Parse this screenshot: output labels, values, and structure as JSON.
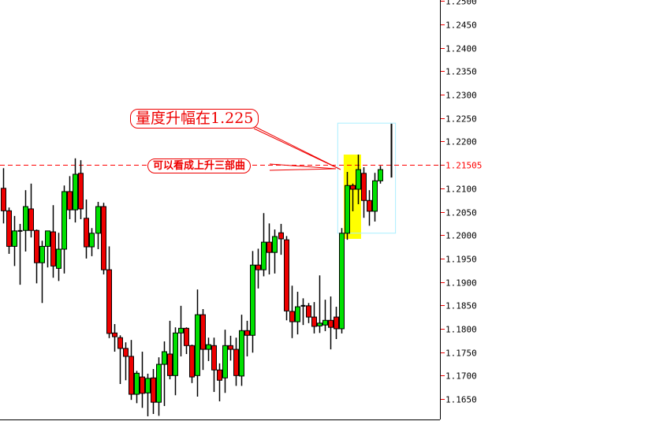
{
  "chart_data": {
    "type": "candlestick",
    "title": "",
    "xlabel": "",
    "ylabel": "",
    "ylim": [
      1.163,
      1.25
    ],
    "y_ticks": [
      "1.2500",
      "1.2450",
      "1.2400",
      "1.2350",
      "1.2300",
      "1.2250",
      "1.2200",
      "1.2100",
      "1.2050",
      "1.2000",
      "1.1950",
      "1.1900",
      "1.1850",
      "1.1800",
      "1.1750",
      "1.1700",
      "1.1650"
    ],
    "grid": false,
    "colors": {
      "up": "#00e000",
      "down": "#ee0000",
      "outline": "#000000",
      "level_line": "#ff0000",
      "highlight": "#ffff00",
      "box": "#aaeeff"
    },
    "candles_ohlc": [
      [
        1.21,
        1.2143,
        1.2025,
        1.2052
      ],
      [
        1.2052,
        1.2059,
        1.196,
        1.1976
      ],
      [
        1.1976,
        1.2041,
        1.1934,
        1.2009
      ],
      [
        1.2009,
        1.2024,
        1.1894,
        1.2009
      ],
      [
        1.201,
        1.2096,
        1.1965,
        1.2061
      ],
      [
        1.2056,
        1.211,
        1.1995,
        1.201
      ],
      [
        1.201,
        1.2012,
        1.1897,
        1.1941
      ],
      [
        1.1941,
        1.1988,
        1.1855,
        1.1976
      ],
      [
        1.1976,
        1.2009,
        1.1931,
        1.2009
      ],
      [
        1.2007,
        1.2064,
        1.1909,
        1.1934
      ],
      [
        1.1929,
        1.2005,
        1.1902,
        1.197
      ],
      [
        1.197,
        1.2106,
        1.1918,
        1.2093
      ],
      [
        1.2093,
        1.2126,
        1.2034,
        1.2054
      ],
      [
        1.2054,
        1.2164,
        1.2027,
        1.213
      ],
      [
        1.2132,
        1.216,
        1.2034,
        1.2056
      ],
      [
        1.2036,
        1.2076,
        1.195,
        1.1975
      ],
      [
        1.1975,
        1.2015,
        1.1955,
        1.2004
      ],
      [
        1.2004,
        1.2071,
        1.197,
        1.2061
      ],
      [
        1.2061,
        1.2069,
        1.1916,
        1.1926
      ],
      [
        1.1926,
        1.1976,
        1.178,
        1.179
      ],
      [
        1.1791,
        1.181,
        1.1751,
        1.1783
      ],
      [
        1.1781,
        1.1786,
        1.1682,
        1.1758
      ],
      [
        1.1758,
        1.1771,
        1.169,
        1.1741
      ],
      [
        1.1741,
        1.1776,
        1.1648,
        1.166
      ],
      [
        1.166,
        1.171,
        1.1641,
        1.1705
      ],
      [
        1.1697,
        1.1751,
        1.1631,
        1.1662
      ],
      [
        1.1663,
        1.1704,
        1.1613,
        1.1694
      ],
      [
        1.1695,
        1.1714,
        1.1618,
        1.1643
      ],
      [
        1.1643,
        1.1739,
        1.1614,
        1.1724
      ],
      [
        1.1724,
        1.1773,
        1.1635,
        1.1751
      ],
      [
        1.1746,
        1.1817,
        1.1692,
        1.17
      ],
      [
        1.17,
        1.1803,
        1.1658,
        1.1791
      ],
      [
        1.1791,
        1.1849,
        1.1741,
        1.1801
      ],
      [
        1.1801,
        1.1803,
        1.1746,
        1.1764
      ],
      [
        1.1764,
        1.1766,
        1.1684,
        1.1697
      ],
      [
        1.17,
        1.1884,
        1.1655,
        1.183
      ],
      [
        1.183,
        1.1842,
        1.1712,
        1.1756
      ],
      [
        1.1756,
        1.1781,
        1.1731,
        1.1766
      ],
      [
        1.1764,
        1.1781,
        1.1665,
        1.1712
      ],
      [
        1.1712,
        1.1726,
        1.1645,
        1.169
      ],
      [
        1.1695,
        1.1798,
        1.1663,
        1.1764
      ],
      [
        1.1764,
        1.1785,
        1.1732,
        1.1756
      ],
      [
        1.1756,
        1.1781,
        1.1678,
        1.17
      ],
      [
        1.1699,
        1.183,
        1.1678,
        1.1796
      ],
      [
        1.1796,
        1.1817,
        1.1741,
        1.1786
      ],
      [
        1.1786,
        1.1966,
        1.1749,
        1.1936
      ],
      [
        1.1936,
        1.1971,
        1.1886,
        1.1926
      ],
      [
        1.1926,
        1.2047,
        1.1912,
        1.1985
      ],
      [
        1.1985,
        1.2025,
        1.1916,
        1.1963
      ],
      [
        1.1963,
        1.2012,
        1.1918,
        1.1997
      ],
      [
        1.2005,
        1.2024,
        1.1958,
        1.1992
      ],
      [
        1.199,
        1.1998,
        1.1818,
        1.1838
      ],
      [
        1.1837,
        1.1892,
        1.178,
        1.1815
      ],
      [
        1.1815,
        1.1879,
        1.1788,
        1.1847
      ],
      [
        1.1849,
        1.1865,
        1.1808,
        1.1849
      ],
      [
        1.1849,
        1.1855,
        1.1812,
        1.1825
      ],
      [
        1.1825,
        1.1857,
        1.179,
        1.1805
      ],
      [
        1.1806,
        1.1914,
        1.1791,
        1.1812
      ],
      [
        1.1808,
        1.1862,
        1.1795,
        1.1818
      ],
      [
        1.1818,
        1.1869,
        1.1756,
        1.1803
      ],
      [
        1.1825,
        1.1847,
        1.1778,
        1.18
      ],
      [
        1.18,
        1.2015,
        1.179,
        1.2004
      ],
      [
        1.2004,
        1.2135,
        1.199,
        1.2106
      ],
      [
        1.2106,
        1.211,
        1.2051,
        1.2098
      ],
      [
        1.2098,
        1.2172,
        1.2066,
        1.214
      ],
      [
        1.2132,
        1.2145,
        1.2037,
        1.2074
      ],
      [
        1.2074,
        1.2096,
        1.202,
        1.2051
      ],
      [
        1.2051,
        1.2133,
        1.2029,
        1.2116
      ],
      [
        1.2116,
        1.2148,
        1.211,
        1.214
      ]
    ],
    "last_bar_line": {
      "index": 70,
      "high": 1.2238,
      "low": 1.2123
    },
    "level_line": {
      "value": 1.21505,
      "label": "1.21505"
    },
    "highlight_zone": {
      "from_index": 62,
      "to_index": 64,
      "top": 1.2172,
      "bottom": 1.1992
    },
    "box_zone": {
      "from_index": 61,
      "to_index": 71,
      "top": 1.224,
      "bottom": 1.2005
    },
    "annotations": [
      {
        "text": "量度升幅在1.225"
      },
      {
        "text": "可以看成上升三部曲"
      }
    ]
  }
}
